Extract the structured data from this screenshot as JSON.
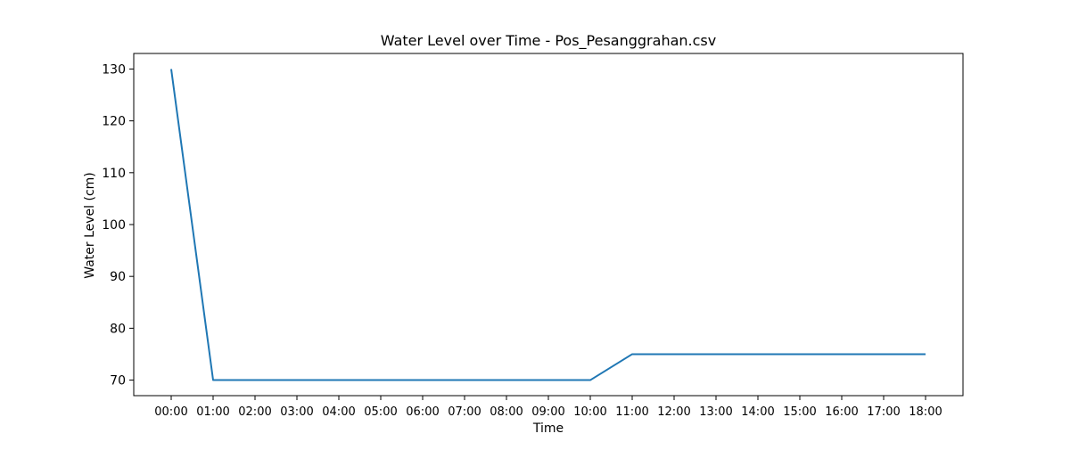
{
  "chart_data": {
    "type": "line",
    "title": "Water Level over Time - Pos_Pesanggrahan.csv",
    "xlabel": "Time",
    "ylabel": "Water Level (cm)",
    "categories": [
      "00:00",
      "01:00",
      "02:00",
      "03:00",
      "04:00",
      "05:00",
      "06:00",
      "07:00",
      "08:00",
      "09:00",
      "10:00",
      "11:00",
      "12:00",
      "13:00",
      "14:00",
      "15:00",
      "16:00",
      "17:00",
      "18:00"
    ],
    "series": [
      {
        "values": [
          130,
          70,
          70,
          70,
          70,
          70,
          70,
          70,
          70,
          70,
          70,
          75,
          75,
          75,
          75,
          75,
          75,
          75,
          75
        ],
        "color": "#1f77b4"
      }
    ],
    "yticks": [
      70,
      80,
      90,
      100,
      110,
      120,
      130
    ],
    "ylim": [
      67,
      133
    ],
    "grid": false,
    "legend": "none"
  }
}
